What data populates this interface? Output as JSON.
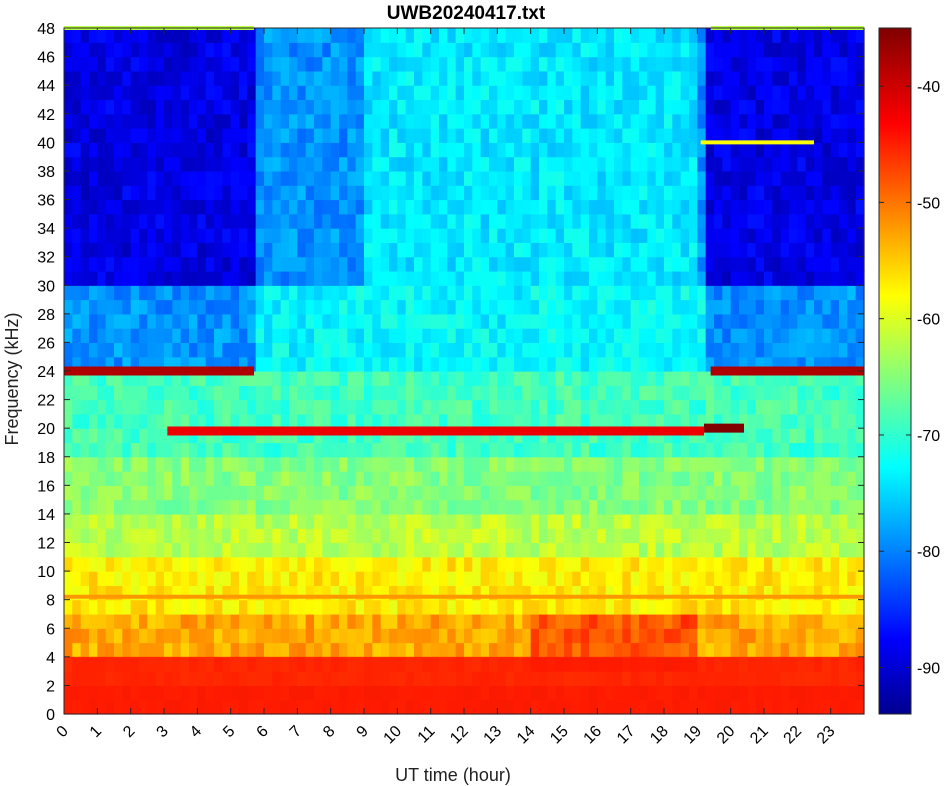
{
  "chart_data": {
    "type": "heatmap",
    "title": "UWB20240417.txt",
    "xlabel": "UT time (hour)",
    "ylabel": "Frequency (kHz)",
    "x_ticks": [
      "0",
      "1",
      "2",
      "3",
      "4",
      "5",
      "6",
      "7",
      "8",
      "9",
      "10",
      "11",
      "12",
      "13",
      "14",
      "15",
      "16",
      "17",
      "18",
      "19",
      "20",
      "21",
      "22",
      "23"
    ],
    "y_ticks": [
      "0",
      "2",
      "4",
      "6",
      "8",
      "10",
      "12",
      "14",
      "16",
      "18",
      "20",
      "22",
      "24",
      "26",
      "28",
      "30",
      "32",
      "34",
      "36",
      "38",
      "40",
      "42",
      "44",
      "46",
      "48"
    ],
    "xlim": [
      0,
      24
    ],
    "ylim": [
      0,
      48
    ],
    "colorbar": {
      "ticks": [
        "-40",
        "-50",
        "-60",
        "-70",
        "-80",
        "-90"
      ],
      "tick_values": [
        -40,
        -50,
        -60,
        -70,
        -80,
        -90
      ],
      "range": [
        -94,
        -35
      ],
      "colormap": "jet"
    },
    "features": [
      {
        "label": "Broadband noise floor",
        "freq_khz": [
          0,
          4
        ],
        "time_h": [
          0,
          24
        ],
        "level_db": -45
      },
      {
        "label": "24 kHz transmitter",
        "freq_khz": 24,
        "time_h": [
          0,
          5.7
        ],
        "level_db": -38
      },
      {
        "label": "24 kHz transmitter",
        "freq_khz": 24,
        "time_h": [
          19.4,
          24
        ],
        "level_db": -38
      },
      {
        "label": "19.8 kHz transmitter",
        "freq_khz": 19.8,
        "time_h": [
          3.1,
          19.2
        ],
        "level_db": -42
      },
      {
        "label": "20 kHz strong burst",
        "freq_khz": 20,
        "time_h": [
          19.2,
          20.4
        ],
        "level_db": -35
      },
      {
        "label": "40 kHz carrier",
        "freq_khz": 40,
        "time_h": [
          19.1,
          22.5
        ],
        "level_db": -58
      },
      {
        "label": "8.2 kHz line",
        "freq_khz": 8.2,
        "time_h": [
          0,
          24
        ],
        "level_db": -52
      },
      {
        "label": "48 kHz top band",
        "freq_khz": 48,
        "time_h": [
          0,
          5.7
        ],
        "level_db": -62
      },
      {
        "label": "48 kHz top band",
        "freq_khz": 48,
        "time_h": [
          19.4,
          24
        ],
        "level_db": -62
      }
    ]
  }
}
